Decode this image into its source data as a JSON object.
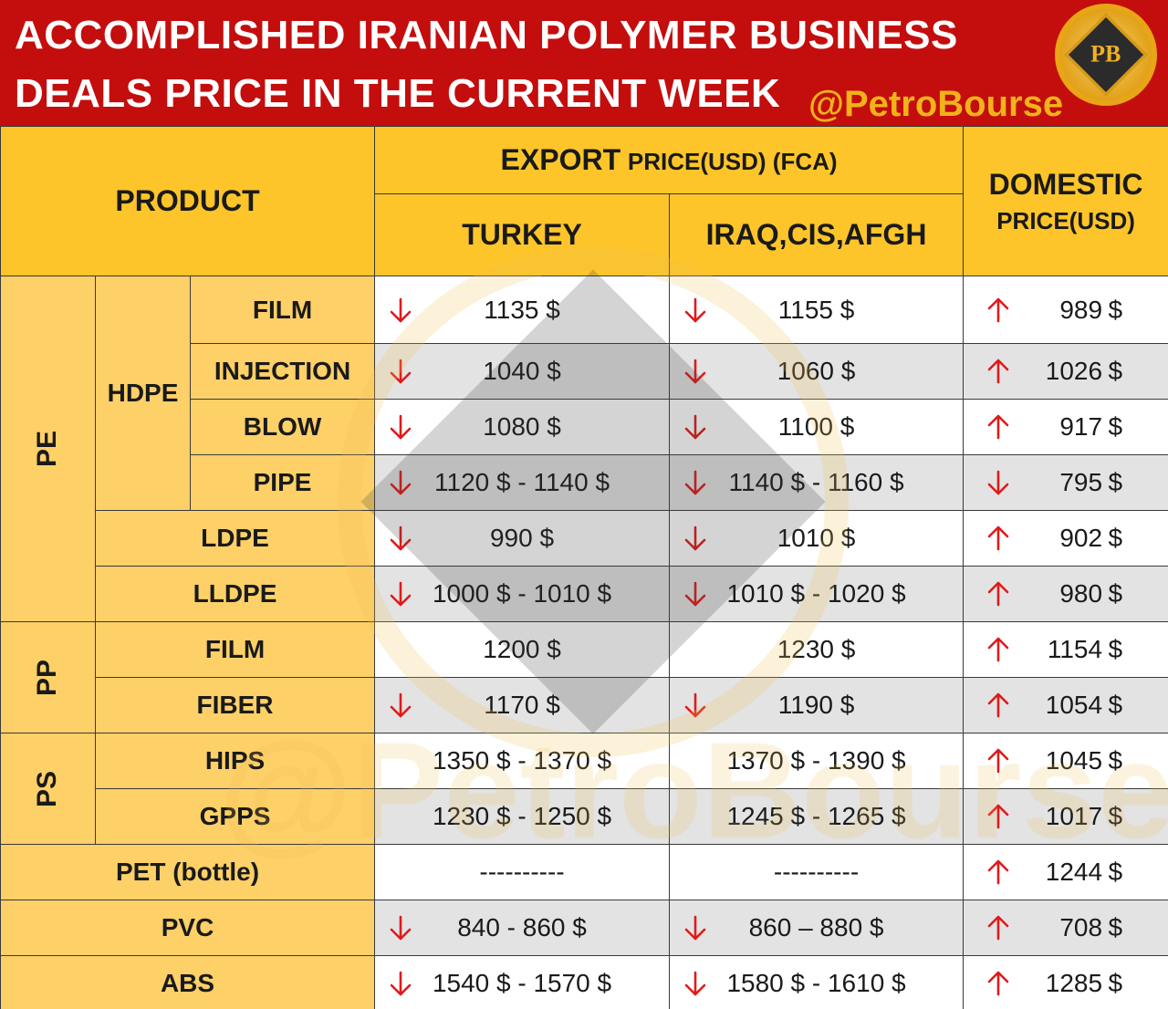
{
  "header": {
    "title_line1": "ACCOMPLISHED IRANIAN POLYMER BUSINESS",
    "title_line2": "DEALS PRICE IN THE CURRENT WEEK",
    "handle": "@PetroBourse",
    "logo_text": "PB",
    "background_color": "#c40d0d",
    "handle_color": "#f2b21a"
  },
  "columns": {
    "product": "PRODUCT",
    "export_main": "EXPORT",
    "export_sub": "PRICE(USD) (FCA)",
    "turkey": "TURKEY",
    "iraq": "IRAQ,CIS,AFGH",
    "domestic_line1": "DOMESTIC",
    "domestic_line2": "PRICE(USD)"
  },
  "groups": {
    "pe": "PE",
    "hdpe": "HDPE",
    "pp": "PP",
    "ps": "PS"
  },
  "arrows": {
    "up_color": "#e01a1a",
    "down_color": "#e01a1a"
  },
  "rows": [
    {
      "label": "FILM",
      "turkey": "1135 $",
      "turkey_trend": "down",
      "iraq": "1155 $",
      "iraq_trend": "down",
      "domestic": "989",
      "domestic_trend": "up",
      "currency": "$"
    },
    {
      "label": "INJECTION",
      "turkey": "1040 $",
      "turkey_trend": "down",
      "iraq": "1060 $",
      "iraq_trend": "down",
      "domestic": "1026",
      "domestic_trend": "up",
      "currency": "$"
    },
    {
      "label": "BLOW",
      "turkey": "1080 $",
      "turkey_trend": "down",
      "iraq": "1100 $",
      "iraq_trend": "down",
      "domestic": "917",
      "domestic_trend": "up",
      "currency": "$"
    },
    {
      "label": "PIPE",
      "turkey": "1120 $ - 1140 $",
      "turkey_trend": "down",
      "iraq": "1140 $ - 1160 $",
      "iraq_trend": "down",
      "domestic": "795",
      "domestic_trend": "down",
      "currency": "$"
    },
    {
      "label": "LDPE",
      "turkey": "990 $",
      "turkey_trend": "down",
      "iraq": "1010 $",
      "iraq_trend": "down",
      "domestic": "902",
      "domestic_trend": "up",
      "currency": "$"
    },
    {
      "label": "LLDPE",
      "turkey": "1000 $ - 1010 $",
      "turkey_trend": "down",
      "iraq": "1010 $ - 1020 $",
      "iraq_trend": "down",
      "domestic": "980",
      "domestic_trend": "up",
      "currency": "$"
    },
    {
      "label": "FILM",
      "turkey": "1200 $",
      "turkey_trend": "none",
      "iraq": "1230 $",
      "iraq_trend": "none",
      "domestic": "1154",
      "domestic_trend": "up",
      "currency": "$"
    },
    {
      "label": "FIBER",
      "turkey": "1170 $",
      "turkey_trend": "down",
      "iraq": "1190 $",
      "iraq_trend": "down",
      "domestic": "1054",
      "domestic_trend": "up",
      "currency": "$"
    },
    {
      "label": "HIPS",
      "turkey": "1350 $ - 1370 $",
      "turkey_trend": "none",
      "iraq": "1370 $ - 1390 $",
      "iraq_trend": "none",
      "domestic": "1045",
      "domestic_trend": "up",
      "currency": "$"
    },
    {
      "label": "GPPS",
      "turkey": "1230 $ - 1250 $",
      "turkey_trend": "none",
      "iraq": "1245 $ - 1265 $",
      "iraq_trend": "none",
      "domestic": "1017",
      "domestic_trend": "up",
      "currency": "$"
    },
    {
      "label": "PET (bottle)",
      "turkey": "----------",
      "turkey_trend": "none",
      "iraq": "----------",
      "iraq_trend": "none",
      "domestic": "1244",
      "domestic_trend": "up",
      "currency": "$"
    },
    {
      "label": "PVC",
      "turkey": "840 - 860 $",
      "turkey_trend": "down",
      "iraq": "860 – 880 $",
      "iraq_trend": "down",
      "domestic": "708",
      "domestic_trend": "up",
      "currency": "$"
    },
    {
      "label": "ABS",
      "turkey": "1540 $ - 1570 $",
      "turkey_trend": "down",
      "iraq": "1580 $ - 1610 $",
      "iraq_trend": "down",
      "domestic": "1285",
      "domestic_trend": "up",
      "currency": "$"
    }
  ],
  "watermark": "@PetroBourse"
}
